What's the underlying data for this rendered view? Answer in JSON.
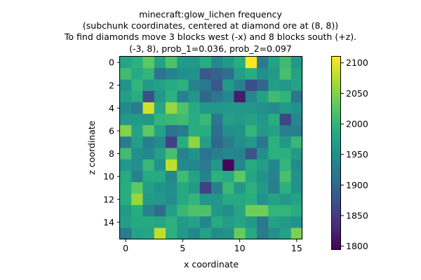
{
  "chart_data": {
    "type": "heatmap",
    "title_lines": [
      "minecraft:glow_lichen frequency",
      "(subchunk coordinates, centered at diamond ore at (8, 8))",
      "To find diamonds move 3 blocks west (-x) and 8 blocks south (+z).",
      "(-3, 8), prob_1=0.036, prob_2=0.097"
    ],
    "xlabel": "x coordinate",
    "ylabel": "z coordinate",
    "x_ticks": [
      "0",
      "5",
      "10",
      "15"
    ],
    "y_ticks": [
      "0",
      "2",
      "4",
      "6",
      "8",
      "10",
      "12",
      "14"
    ],
    "colorbar": {
      "min": 1795,
      "max": 2110,
      "ticks": [
        "1800",
        "1850",
        "1900",
        "1950",
        "2000",
        "2050",
        "2100"
      ]
    },
    "colormap": "viridis",
    "values": [
      [
        1980,
        1995,
        2030,
        1975,
        2020,
        1965,
        1960,
        1990,
        1940,
        1965,
        1990,
        2110,
        1925,
        1975,
        2010,
        1960
      ],
      [
        2010,
        1985,
        2000,
        1915,
        1935,
        1950,
        1955,
        1880,
        1895,
        1910,
        1970,
        1990,
        1950,
        1965,
        2015,
        1975
      ],
      [
        1955,
        2000,
        1965,
        1975,
        1985,
        1995,
        1935,
        1920,
        1880,
        1965,
        1935,
        1870,
        1900,
        1970,
        1960,
        1975
      ],
      [
        1970,
        1990,
        1870,
        1960,
        1995,
        1935,
        1960,
        1900,
        1920,
        1940,
        1820,
        1940,
        1975,
        2010,
        2000,
        1920
      ],
      [
        1945,
        1925,
        2090,
        1980,
        2060,
        2020,
        1985,
        1960,
        1960,
        1965,
        1960,
        1960,
        1950,
        1945,
        1965,
        1955
      ],
      [
        1960,
        1965,
        1960,
        2000,
        2005,
        2010,
        1990,
        2005,
        1920,
        1970,
        1965,
        1975,
        1960,
        1990,
        1860,
        1940
      ],
      [
        2050,
        1975,
        2030,
        1975,
        1915,
        1925,
        1990,
        1990,
        1910,
        1950,
        1955,
        2000,
        1965,
        1975,
        1930,
        1930
      ],
      [
        1925,
        1970,
        1930,
        1945,
        1855,
        1990,
        2055,
        1970,
        1900,
        1925,
        1950,
        1960,
        1920,
        1995,
        1965,
        2005
      ],
      [
        2010,
        1950,
        1940,
        1970,
        2015,
        1935,
        1955,
        1915,
        1930,
        1940,
        1935,
        1880,
        1950,
        1995,
        1995,
        1965
      ],
      [
        1960,
        1950,
        2005,
        1955,
        2080,
        1945,
        1940,
        1925,
        1960,
        1800,
        1940,
        1985,
        1970,
        1940,
        2000,
        1945
      ],
      [
        1985,
        1935,
        1985,
        1985,
        1940,
        2010,
        1975,
        1935,
        1995,
        1985,
        2030,
        1980,
        1955,
        1935,
        2015,
        1955
      ],
      [
        1990,
        2030,
        1970,
        1955,
        1950,
        1985,
        1965,
        1855,
        1930,
        2005,
        1960,
        1995,
        1965,
        1930,
        1995,
        1955
      ],
      [
        1990,
        2060,
        1965,
        1960,
        1950,
        1985,
        2000,
        1960,
        1960,
        1985,
        1985,
        1990,
        1955,
        1975,
        1965,
        1975
      ],
      [
        1965,
        1990,
        1935,
        1905,
        1970,
        2005,
        2020,
        2020,
        1960,
        1950,
        1980,
        2040,
        2040,
        2000,
        2000,
        1990
      ],
      [
        1970,
        1985,
        1985,
        1980,
        1995,
        1965,
        1975,
        1940,
        1985,
        1970,
        1980,
        1965,
        1920,
        1975,
        1965,
        1955
      ],
      [
        1925,
        1975,
        1980,
        2080,
        1995,
        1960,
        1940,
        1975,
        1945,
        1955,
        2035,
        1985,
        1925,
        1950,
        1975,
        2045
      ]
    ]
  }
}
